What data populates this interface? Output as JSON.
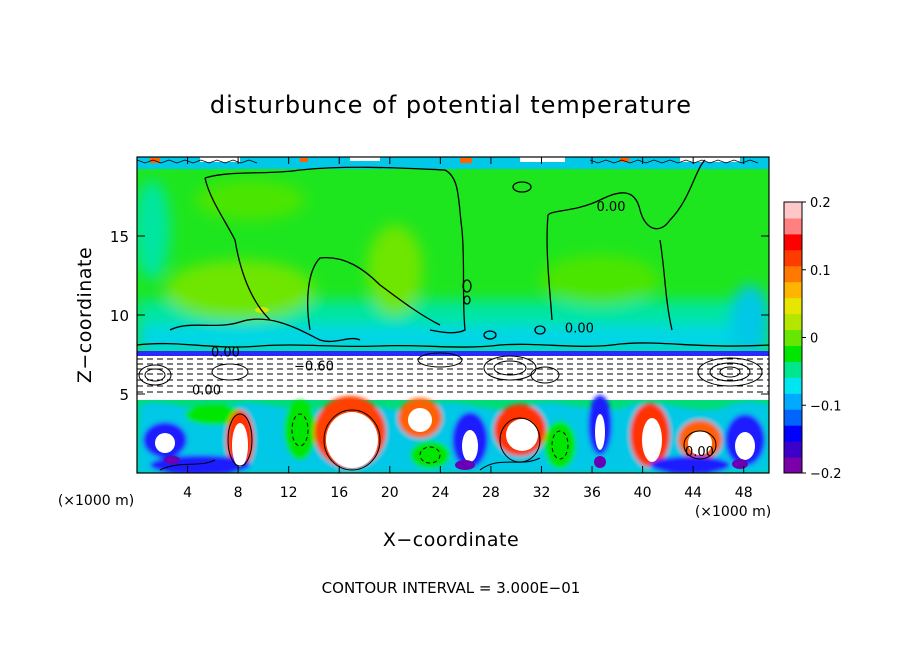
{
  "chart_data": {
    "type": "heatmap",
    "title": "disturbunce of potential temperature",
    "xlabel": "X−coordinate",
    "ylabel": "Z−coordinate",
    "x_unit_left": "(×1000 m)",
    "x_unit_right": "(×1000 m)",
    "x_ticks": [
      4,
      8,
      12,
      16,
      20,
      24,
      28,
      32,
      36,
      40,
      44,
      48
    ],
    "y_ticks": [
      5,
      10,
      15
    ],
    "xlim": [
      0,
      50
    ],
    "ylim": [
      0,
      20
    ],
    "colorbar": {
      "ticks": [
        0.2,
        0.1,
        0,
        -0.1,
        -0.2
      ],
      "tick_labels": [
        "0.2",
        "0.1",
        "0",
        "−0.1",
        "−0.2"
      ],
      "range": [
        -0.2,
        0.2
      ],
      "colors": [
        "#7a00a8",
        "#3c00c8",
        "#0000ff",
        "#0064ff",
        "#00aaff",
        "#00e6f0",
        "#00e68c",
        "#00e600",
        "#66e600",
        "#b4e600",
        "#e6e600",
        "#ffb400",
        "#ff7800",
        "#ff3c00",
        "#ff0000",
        "#ff8080",
        "#ffc8c8"
      ]
    },
    "contour_labels": [
      {
        "text": "0.00",
        "x": 37.5,
        "z": 16.9
      },
      {
        "text": "0.00",
        "x": 35.0,
        "z": 9.2
      },
      {
        "text": "0.00",
        "x": 7.0,
        "z": 7.7
      },
      {
        "text": "−0.60",
        "x": 14.0,
        "z": 6.8
      },
      {
        "text": "0.00",
        "x": 5.5,
        "z": 5.3
      },
      {
        "text": "0.00",
        "x": 44.5,
        "z": 1.4
      }
    ],
    "contour_interval": "CONTOUR INTERVAL = 3.000E−01"
  }
}
